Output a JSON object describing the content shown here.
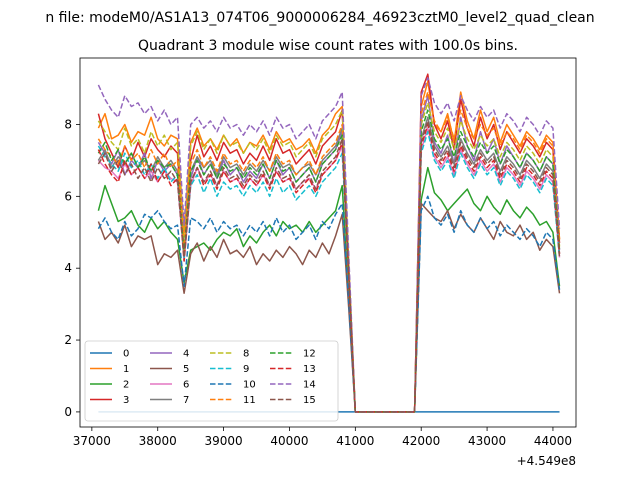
{
  "chart_data": {
    "type": "line",
    "suptitle": "n file: modeM0/AS1A13_074T06_9000006284_46923cztM0_level2_quad_clean",
    "title": "Quadrant 3 module wise count rates with 100.0s bins.",
    "xlabel": "",
    "ylabel": "",
    "x_offset_label": "+4.549e8",
    "xlim": [
      36820,
      44350
    ],
    "ylim": [
      -0.42,
      9.85
    ],
    "x_ticks": [
      37000,
      38000,
      39000,
      40000,
      41000,
      42000,
      43000,
      44000
    ],
    "x_tick_labels": [
      "37000",
      "38000",
      "39000",
      "40000",
      "41000",
      "42000",
      "43000",
      "44000"
    ],
    "y_ticks": [
      0,
      2,
      4,
      6,
      8
    ],
    "y_tick_labels": [
      "0",
      "2",
      "4",
      "6",
      "8"
    ],
    "grid": false,
    "legend_placement": "lower-left",
    "x_start": 37100,
    "x_step": 100,
    "series": [
      {
        "name": "0",
        "color": "#1f77b4",
        "dash": "solid",
        "values": [
          0,
          0,
          0,
          0,
          0,
          0,
          0,
          0,
          0,
          0,
          0,
          0,
          0,
          0,
          0,
          0,
          0,
          0,
          0,
          0,
          0,
          0,
          0,
          0,
          0,
          0,
          0,
          0,
          0,
          0,
          0,
          0,
          0,
          0,
          0,
          0,
          0,
          0,
          0,
          0,
          0,
          0,
          0,
          0,
          0,
          0,
          0,
          0,
          0,
          0,
          0,
          0,
          0,
          0,
          0,
          0,
          0,
          0,
          0,
          0,
          0,
          0,
          0,
          0,
          0,
          0,
          0,
          0,
          0,
          0,
          0
        ]
      },
      {
        "name": "1",
        "color": "#ff7f0e",
        "dash": "solid",
        "values": [
          7.9,
          8.3,
          7.6,
          7.7,
          8.0,
          7.5,
          7.8,
          7.7,
          8.2,
          7.6,
          7.4,
          7.7,
          7.6,
          5.0,
          7.5,
          7.9,
          7.4,
          7.6,
          7.3,
          7.7,
          7.4,
          7.6,
          7.2,
          7.5,
          7.4,
          7.7,
          7.3,
          7.8,
          7.5,
          7.6,
          7.3,
          7.4,
          7.6,
          7.2,
          7.7,
          7.9,
          8.3,
          8.5,
          4.1,
          0,
          0,
          0,
          0,
          0,
          0,
          0,
          0,
          0,
          0,
          8.5,
          9.2,
          8.0,
          7.8,
          8.3,
          7.5,
          8.9,
          8.1,
          7.6,
          8.4,
          7.8,
          8.2,
          7.5,
          8.0,
          7.7,
          7.4,
          7.8,
          7.6,
          7.3,
          7.7,
          7.5,
          4.8
        ]
      },
      {
        "name": "2",
        "color": "#2ca02c",
        "dash": "solid",
        "values": [
          5.6,
          6.3,
          5.8,
          5.3,
          5.4,
          5.6,
          5.2,
          5.0,
          5.4,
          5.1,
          5.3,
          5.0,
          4.8,
          3.6,
          4.5,
          4.6,
          4.7,
          4.5,
          4.8,
          5.0,
          4.9,
          5.1,
          4.6,
          4.9,
          4.7,
          5.0,
          5.2,
          4.9,
          5.3,
          5.1,
          5.2,
          5.0,
          5.3,
          5.0,
          5.2,
          5.4,
          5.6,
          6.3,
          3.2,
          0,
          0,
          0,
          0,
          0,
          0,
          0,
          0,
          0,
          0,
          5.9,
          6.8,
          6.1,
          5.9,
          5.6,
          5.8,
          6.0,
          6.2,
          5.8,
          5.6,
          6.0,
          5.7,
          5.5,
          5.9,
          5.6,
          5.4,
          5.7,
          5.5,
          5.2,
          5.3,
          5.0,
          3.5
        ]
      },
      {
        "name": "3",
        "color": "#d62728",
        "dash": "solid",
        "values": [
          8.3,
          7.6,
          7.2,
          6.8,
          7.4,
          7.0,
          7.5,
          7.1,
          7.6,
          7.3,
          7.1,
          7.4,
          7.2,
          4.4,
          7.0,
          7.7,
          7.1,
          7.4,
          7.0,
          7.5,
          7.2,
          7.3,
          6.9,
          7.2,
          7.0,
          7.4,
          7.0,
          7.6,
          7.2,
          7.3,
          6.9,
          7.1,
          7.3,
          6.9,
          7.4,
          7.6,
          7.8,
          8.4,
          4.0,
          0,
          0,
          0,
          0,
          0,
          0,
          0,
          0,
          0,
          0,
          8.9,
          9.4,
          8.0,
          7.6,
          8.1,
          7.3,
          8.7,
          7.9,
          7.4,
          8.2,
          7.6,
          8.0,
          7.3,
          7.8,
          7.5,
          7.2,
          7.6,
          7.4,
          7.1,
          7.5,
          7.3,
          4.7
        ]
      },
      {
        "name": "4",
        "color": "#9467bd",
        "dash": "solid",
        "values": [
          7.5,
          7.2,
          6.9,
          7.3,
          6.6,
          7.0,
          6.8,
          7.2,
          6.5,
          7.0,
          6.7,
          6.9,
          6.6,
          4.3,
          6.5,
          7.1,
          6.6,
          6.9,
          6.5,
          7.0,
          6.6,
          6.8,
          6.4,
          6.7,
          6.5,
          6.9,
          6.5,
          7.0,
          6.6,
          6.8,
          6.4,
          6.6,
          6.8,
          6.4,
          6.9,
          7.1,
          7.3,
          7.8,
          3.8,
          0,
          0,
          0,
          0,
          0,
          0,
          0,
          0,
          0,
          0,
          8.1,
          8.8,
          7.5,
          7.2,
          7.7,
          6.9,
          8.2,
          7.4,
          7.0,
          7.8,
          7.2,
          7.6,
          6.9,
          7.4,
          7.1,
          6.8,
          7.2,
          7.0,
          6.7,
          7.1,
          6.9,
          4.5
        ]
      },
      {
        "name": "5",
        "color": "#8c564b",
        "dash": "solid",
        "values": [
          5.3,
          4.8,
          5.0,
          4.7,
          5.2,
          4.6,
          4.9,
          4.8,
          4.9,
          4.1,
          4.4,
          4.3,
          4.5,
          3.3,
          4.4,
          4.7,
          4.2,
          4.6,
          4.3,
          4.8,
          4.4,
          4.5,
          4.3,
          4.6,
          4.1,
          4.4,
          4.2,
          4.5,
          4.3,
          4.6,
          4.4,
          4.1,
          4.5,
          4.3,
          4.7,
          4.4,
          4.9,
          5.5,
          2.9,
          0,
          0,
          0,
          0,
          0,
          0,
          0,
          0,
          0,
          0,
          5.8,
          5.6,
          5.4,
          5.3,
          5.6,
          5.1,
          5.5,
          5.2,
          5.0,
          5.4,
          5.1,
          4.8,
          5.3,
          5.0,
          4.9,
          5.2,
          4.8,
          5.0,
          4.5,
          4.8,
          4.6,
          3.3
        ]
      },
      {
        "name": "6",
        "color": "#e377c2",
        "dash": "solid",
        "values": [
          7.0,
          6.8,
          6.7,
          6.5,
          6.9,
          6.6,
          6.8,
          6.5,
          6.7,
          6.4,
          6.7,
          6.5,
          6.4,
          4.2,
          6.3,
          6.8,
          6.4,
          6.6,
          6.3,
          6.7,
          6.4,
          6.5,
          6.2,
          6.5,
          6.3,
          6.6,
          6.3,
          6.7,
          6.4,
          6.5,
          6.2,
          6.4,
          6.5,
          6.2,
          6.6,
          6.8,
          7.0,
          7.4,
          3.7,
          0,
          0,
          0,
          0,
          0,
          0,
          0,
          0,
          0,
          0,
          7.3,
          7.9,
          7.1,
          6.8,
          7.1,
          6.6,
          7.3,
          6.9,
          6.6,
          7.0,
          6.7,
          6.9,
          6.4,
          6.8,
          6.6,
          6.3,
          6.7,
          6.5,
          6.2,
          6.6,
          6.4,
          4.3
        ]
      },
      {
        "name": "7",
        "color": "#7f7f7f",
        "dash": "solid",
        "values": [
          7.0,
          7.3,
          6.8,
          7.1,
          6.9,
          7.2,
          6.8,
          7.0,
          6.7,
          7.1,
          6.8,
          7.0,
          6.7,
          4.3,
          6.7,
          7.1,
          6.8,
          7.0,
          6.6,
          7.1,
          6.8,
          6.9,
          6.6,
          6.9,
          6.7,
          7.0,
          6.7,
          7.1,
          6.8,
          6.9,
          6.6,
          6.8,
          6.9,
          6.6,
          7.0,
          7.2,
          7.4,
          7.9,
          3.9,
          0,
          0,
          0,
          0,
          0,
          0,
          0,
          0,
          0,
          0,
          7.6,
          8.2,
          7.4,
          7.1,
          7.4,
          6.9,
          7.6,
          7.2,
          6.9,
          7.3,
          7.0,
          7.2,
          6.7,
          7.1,
          6.9,
          6.6,
          7.0,
          6.8,
          6.5,
          6.9,
          6.7,
          4.4
        ]
      },
      {
        "name": "8",
        "color": "#bcbd22",
        "dash": "dash",
        "values": [
          8.1,
          7.8,
          7.5,
          7.3,
          7.9,
          7.4,
          7.6,
          7.2,
          7.8,
          7.4,
          7.7,
          7.3,
          7.5,
          4.6,
          7.4,
          7.8,
          7.3,
          7.6,
          7.2,
          7.7,
          7.4,
          7.5,
          7.2,
          7.5,
          7.3,
          7.6,
          7.2,
          7.7,
          7.4,
          7.5,
          7.1,
          7.3,
          7.5,
          7.1,
          7.6,
          7.8,
          8.0,
          8.4,
          4.2,
          0,
          0,
          0,
          0,
          0,
          0,
          0,
          0,
          0,
          0,
          8.0,
          8.6,
          7.8,
          7.5,
          7.9,
          7.3,
          8.1,
          7.6,
          7.3,
          7.7,
          7.4,
          7.6,
          7.1,
          7.5,
          7.3,
          7.0,
          7.4,
          7.2,
          6.9,
          7.3,
          7.1,
          4.6
        ]
      },
      {
        "name": "9",
        "color": "#17becf",
        "dash": "dash",
        "values": [
          7.4,
          7.1,
          6.9,
          6.7,
          7.2,
          6.8,
          7.0,
          6.6,
          6.9,
          6.5,
          6.8,
          6.4,
          6.6,
          4.3,
          6.3,
          6.6,
          6.1,
          6.5,
          6.0,
          6.4,
          6.2,
          6.3,
          6.0,
          6.3,
          6.1,
          6.4,
          6.0,
          6.5,
          6.1,
          6.3,
          5.9,
          6.1,
          6.3,
          6.0,
          6.4,
          6.6,
          6.8,
          7.2,
          3.8,
          0,
          0,
          0,
          0,
          0,
          0,
          0,
          0,
          0,
          0,
          7.2,
          7.8,
          7.0,
          6.7,
          7.0,
          6.5,
          7.2,
          6.8,
          6.5,
          6.9,
          6.6,
          6.8,
          6.3,
          6.7,
          6.5,
          6.2,
          6.6,
          6.4,
          6.1,
          6.5,
          6.3,
          4.3
        ]
      },
      {
        "name": "10",
        "color": "#1f77b4",
        "dash": "dash",
        "values": [
          5.1,
          5.4,
          5.0,
          4.8,
          5.3,
          4.9,
          5.1,
          5.5,
          5.4,
          5.6,
          5.3,
          5.1,
          5.2,
          3.5,
          5.4,
          5.3,
          5.1,
          5.4,
          5.0,
          5.3,
          5.1,
          5.2,
          4.9,
          5.2,
          5.0,
          5.3,
          4.9,
          5.4,
          5.0,
          5.2,
          4.8,
          5.0,
          5.2,
          4.8,
          5.3,
          5.1,
          5.5,
          5.8,
          3.1,
          0,
          0,
          0,
          0,
          0,
          0,
          0,
          0,
          0,
          0,
          5.6,
          6.0,
          5.4,
          5.2,
          5.5,
          5.0,
          5.6,
          5.2,
          5.0,
          5.4,
          5.1,
          5.3,
          4.9,
          5.2,
          5.0,
          4.8,
          5.1,
          4.9,
          4.6,
          5.0,
          4.8,
          3.4
        ]
      },
      {
        "name": "11",
        "color": "#ff7f0e",
        "dash": "dash",
        "values": [
          7.6,
          7.3,
          7.1,
          6.9,
          7.4,
          7.0,
          7.2,
          6.8,
          7.3,
          6.9,
          7.2,
          6.8,
          7.0,
          4.5,
          6.9,
          7.3,
          6.8,
          7.1,
          6.7,
          7.2,
          6.9,
          7.0,
          6.7,
          7.0,
          6.8,
          7.1,
          6.7,
          7.2,
          6.9,
          7.0,
          6.6,
          6.8,
          7.0,
          6.6,
          7.1,
          7.3,
          7.5,
          8.0,
          4.0,
          0,
          0,
          0,
          0,
          0,
          0,
          0,
          0,
          0,
          0,
          8.3,
          8.9,
          8.1,
          7.8,
          8.2,
          7.6,
          8.4,
          7.9,
          7.6,
          8.0,
          7.7,
          7.9,
          7.4,
          7.8,
          7.6,
          7.3,
          7.7,
          7.5,
          7.2,
          7.6,
          7.4,
          4.8
        ]
      },
      {
        "name": "12",
        "color": "#2ca02c",
        "dash": "dash",
        "values": [
          7.2,
          7.5,
          7.0,
          7.3,
          6.9,
          7.2,
          6.8,
          7.1,
          6.7,
          7.0,
          6.8,
          6.9,
          6.6,
          4.4,
          6.7,
          7.0,
          6.6,
          6.9,
          6.5,
          6.9,
          6.7,
          6.8,
          6.5,
          6.8,
          6.6,
          6.9,
          6.5,
          7.0,
          6.7,
          6.8,
          6.4,
          6.6,
          6.8,
          6.4,
          6.9,
          7.1,
          7.3,
          7.7,
          3.9,
          0,
          0,
          0,
          0,
          0,
          0,
          0,
          0,
          0,
          0,
          7.8,
          8.4,
          7.6,
          7.3,
          7.6,
          7.1,
          7.8,
          7.4,
          7.1,
          7.5,
          7.2,
          7.4,
          6.9,
          7.3,
          7.1,
          6.8,
          7.2,
          7.0,
          6.7,
          7.1,
          6.9,
          4.5
        ]
      },
      {
        "name": "13",
        "color": "#d62728",
        "dash": "dash",
        "values": [
          7.3,
          6.9,
          6.6,
          6.4,
          7.0,
          6.6,
          6.8,
          6.5,
          6.9,
          6.4,
          6.7,
          6.3,
          6.5,
          4.2,
          6.4,
          6.8,
          6.3,
          6.6,
          6.2,
          6.7,
          6.4,
          6.5,
          6.2,
          6.5,
          6.3,
          6.6,
          6.2,
          6.7,
          6.4,
          6.5,
          6.1,
          6.3,
          6.5,
          6.1,
          6.6,
          6.8,
          7.0,
          7.5,
          3.8,
          0,
          0,
          0,
          0,
          0,
          0,
          0,
          0,
          0,
          0,
          7.4,
          8.0,
          7.2,
          6.9,
          7.2,
          6.7,
          7.4,
          7.0,
          6.7,
          7.1,
          6.8,
          7.0,
          6.5,
          6.9,
          6.7,
          6.4,
          6.8,
          6.6,
          6.3,
          6.7,
          6.5,
          4.4
        ]
      },
      {
        "name": "14",
        "color": "#9467bd",
        "dash": "dash",
        "values": [
          9.1,
          8.7,
          8.4,
          8.2,
          8.8,
          8.5,
          8.6,
          8.3,
          8.5,
          8.1,
          8.4,
          8.0,
          8.2,
          5.2,
          8.0,
          8.2,
          7.9,
          8.1,
          7.8,
          8.2,
          7.9,
          8.0,
          7.7,
          8.0,
          7.8,
          8.1,
          7.7,
          8.2,
          7.9,
          8.0,
          7.6,
          7.8,
          8.0,
          7.6,
          8.1,
          8.3,
          8.5,
          8.9,
          4.4,
          0,
          0,
          0,
          0,
          0,
          0,
          0,
          0,
          0,
          0,
          8.8,
          9.3,
          8.6,
          8.3,
          8.6,
          8.1,
          8.8,
          8.4,
          8.1,
          8.5,
          8.2,
          8.4,
          7.9,
          8.3,
          8.1,
          7.8,
          8.2,
          8.0,
          7.7,
          8.1,
          7.9,
          5.1
        ]
      },
      {
        "name": "15",
        "color": "#8c564b",
        "dash": "dash",
        "values": [
          6.9,
          7.2,
          6.7,
          7.0,
          6.6,
          6.9,
          6.5,
          6.8,
          6.4,
          6.8,
          6.5,
          6.7,
          6.4,
          4.3,
          6.4,
          6.8,
          6.4,
          6.7,
          6.3,
          6.8,
          6.5,
          6.6,
          6.3,
          6.6,
          6.4,
          6.7,
          6.3,
          6.8,
          6.5,
          6.6,
          6.2,
          6.4,
          6.6,
          6.2,
          6.7,
          6.9,
          7.1,
          7.6,
          3.8,
          0,
          0,
          0,
          0,
          0,
          0,
          0,
          0,
          0,
          0,
          7.5,
          8.1,
          7.3,
          7.0,
          7.3,
          6.8,
          7.5,
          7.1,
          6.8,
          7.2,
          6.9,
          7.1,
          6.6,
          7.0,
          6.8,
          6.5,
          6.9,
          6.7,
          6.4,
          6.8,
          6.6,
          4.3
        ]
      }
    ]
  }
}
